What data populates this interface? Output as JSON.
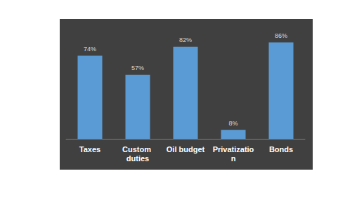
{
  "chart_data": {
    "type": "bar",
    "categories": [
      "Taxes",
      "Custom duties",
      "Oil budget",
      "Privatization",
      "Bonds"
    ],
    "values": [
      74,
      57,
      82,
      8,
      86
    ],
    "value_labels": [
      "74%",
      "57%",
      "82%",
      "8%",
      "86%"
    ],
    "color": "#5b9bd5",
    "ylim": [
      0,
      100
    ],
    "data_labels": true,
    "tick_labels": "x",
    "grid": false
  }
}
